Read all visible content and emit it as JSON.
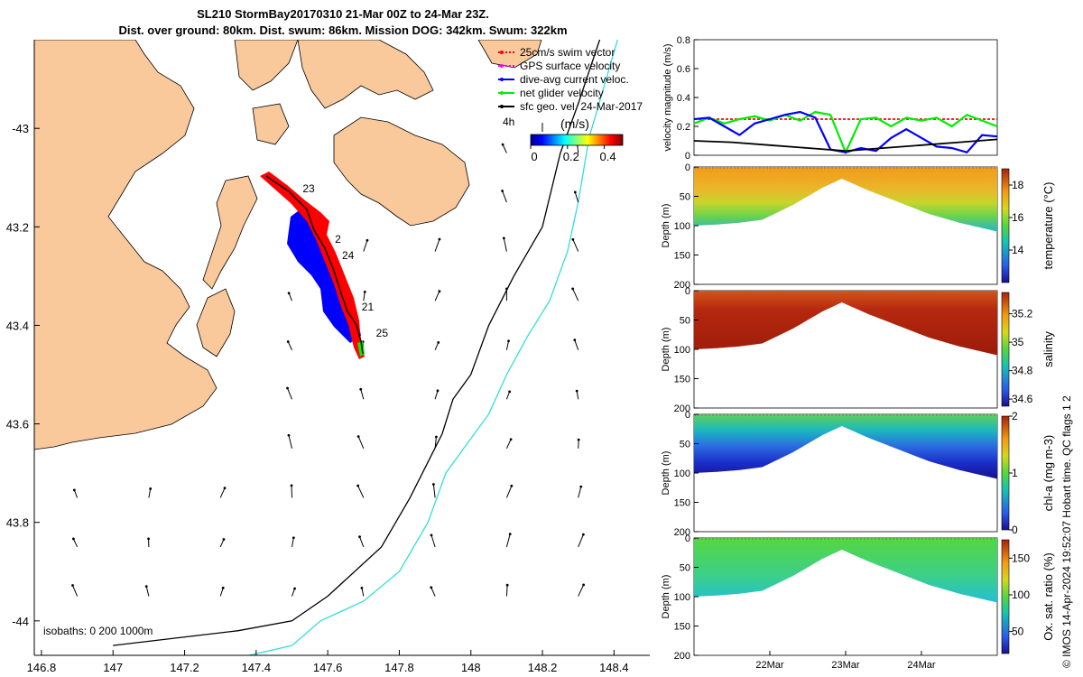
{
  "title": {
    "line1": "SL210 StormBay20170310 21-Mar 00Z to 24-Mar 23Z.",
    "line2": "Dist. over ground: 80km. Dist. swum: 86km. Mission DOG: 342km. Swum: 322km"
  },
  "colors": {
    "land": "#f9c89b",
    "track_red": "#ff0000",
    "track_blue": "#0000ff",
    "green": "#00ee00",
    "isobath200": "#000000",
    "isobath1000": "#33dddd"
  },
  "credit": "© IMOS 14-Apr-2024 19:52:07 Hobart time. QC flags 1  2",
  "chart_data": [
    {
      "type": "map",
      "xticks": [
        "146.8",
        "147",
        "147.2",
        "147.4",
        "147.6",
        "147.8",
        "148",
        "148.2",
        "148.4"
      ],
      "yticks": [
        "-43",
        "43.2",
        "43.4",
        "43.6",
        "43.8",
        "-44"
      ],
      "xlim": [
        146.78,
        148.5
      ],
      "ylim": [
        -44.07,
        -42.82
      ],
      "legend": [
        {
          "label": "25cm/s swim vector",
          "color": "#ff0000"
        },
        {
          "label": "GPS surface velocity",
          "color": "#ff00ff"
        },
        {
          "label": "dive-avg current veloc.",
          "color": "#0000ff"
        },
        {
          "label": "net glider velocity",
          "color": "#00ee00"
        },
        {
          "label": "sfc geo. vel. 24-Mar-2017",
          "color": "#000000"
        }
      ],
      "scale_label": "4h",
      "colorbar": {
        "label": "(m/s)",
        "ticks": [
          "0",
          "0.2",
          "0.4"
        ],
        "range": [
          0,
          0.5
        ]
      },
      "day_labels": [
        {
          "label": "23",
          "lon": 147.53,
          "lat": -43.13
        },
        {
          "label": "2",
          "lon": 147.62,
          "lat": -43.232
        },
        {
          "label": "24",
          "lon": 147.64,
          "lat": -43.265
        },
        {
          "label": "21",
          "lon": 147.695,
          "lat": -43.37
        },
        {
          "label": "25",
          "lon": 147.735,
          "lat": -43.423
        }
      ],
      "isobaths_label": "isobaths: 0   200  1000m",
      "isobath_200": [
        [
          147.0,
          -44.05
        ],
        [
          147.35,
          -44.02
        ],
        [
          147.5,
          -44.0
        ],
        [
          147.6,
          -43.95
        ],
        [
          147.75,
          -43.85
        ],
        [
          147.83,
          -43.75
        ],
        [
          147.92,
          -43.62
        ],
        [
          147.95,
          -43.55
        ],
        [
          148.0,
          -43.5
        ],
        [
          148.05,
          -43.4
        ],
        [
          148.12,
          -43.3
        ],
        [
          148.2,
          -43.2
        ],
        [
          148.25,
          -43.05
        ],
        [
          148.3,
          -42.95
        ],
        [
          148.36,
          -42.82
        ]
      ],
      "isobath_1000": [
        [
          147.38,
          -44.07
        ],
        [
          147.5,
          -44.05
        ],
        [
          147.58,
          -44.0
        ],
        [
          147.7,
          -43.96
        ],
        [
          147.8,
          -43.9
        ],
        [
          147.88,
          -43.8
        ],
        [
          147.93,
          -43.7
        ],
        [
          147.98,
          -43.65
        ],
        [
          148.05,
          -43.58
        ],
        [
          148.1,
          -43.5
        ],
        [
          148.16,
          -43.42
        ],
        [
          148.22,
          -43.35
        ],
        [
          148.27,
          -43.25
        ],
        [
          148.3,
          -43.15
        ],
        [
          148.33,
          -43.02
        ],
        [
          148.37,
          -42.92
        ],
        [
          148.41,
          -42.82
        ]
      ]
    },
    {
      "type": "line",
      "ylabel": "velocity magnitude (m/s)",
      "ylim": [
        0,
        0.8
      ],
      "yticks": [
        "0",
        "0.2",
        "0.4",
        "0.6",
        "0.8"
      ],
      "xlim": [
        21.0,
        25.0
      ],
      "series": [
        {
          "color": "#ff0000",
          "x": [
            21.0,
            25.0
          ],
          "values": [
            0.25,
            0.25
          ]
        },
        {
          "color": "#00ee00",
          "x": [
            21.0,
            21.2,
            21.4,
            21.6,
            21.8,
            22.0,
            22.2,
            22.4,
            22.6,
            22.8,
            23.0,
            23.2,
            23.4,
            23.6,
            23.8,
            24.0,
            24.2,
            24.4,
            24.6,
            24.8,
            25.0
          ],
          "values": [
            0.22,
            0.26,
            0.22,
            0.25,
            0.27,
            0.24,
            0.28,
            0.24,
            0.3,
            0.28,
            0.02,
            0.25,
            0.26,
            0.2,
            0.26,
            0.24,
            0.26,
            0.2,
            0.28,
            0.24,
            0.2
          ]
        },
        {
          "color": "#0000ff",
          "x": [
            21.0,
            21.2,
            21.4,
            21.6,
            21.8,
            22.0,
            22.2,
            22.4,
            22.6,
            22.7,
            22.8,
            23.0,
            23.2,
            23.4,
            23.6,
            23.8,
            24.0,
            24.2,
            24.4,
            24.6,
            24.8,
            25.0
          ],
          "values": [
            0.25,
            0.26,
            0.2,
            0.14,
            0.22,
            0.25,
            0.28,
            0.3,
            0.26,
            0.15,
            0.04,
            0.02,
            0.05,
            0.03,
            0.12,
            0.18,
            0.12,
            0.06,
            0.05,
            0.02,
            0.14,
            0.13
          ]
        },
        {
          "color": "#000000",
          "x": [
            21.0,
            21.5,
            22.0,
            22.5,
            23.0,
            23.5,
            24.0,
            24.5,
            25.0
          ],
          "values": [
            0.1,
            0.09,
            0.07,
            0.05,
            0.03,
            0.05,
            0.07,
            0.09,
            0.11
          ]
        }
      ]
    },
    {
      "type": "heatmap",
      "ylabel": "Depth (m)",
      "clabel": "temperature (°C)",
      "yticks": [
        "0",
        "50",
        "100",
        "150",
        "200"
      ],
      "cticks": [
        "14",
        "16",
        "18"
      ],
      "crange": [
        12,
        19
      ],
      "xlim": [
        21.0,
        25.0
      ],
      "ylim": [
        0,
        200
      ],
      "bottom_depth": {
        "x": [
          21.0,
          21.3,
          21.6,
          21.9,
          22.3,
          22.7,
          22.95,
          23.3,
          23.7,
          24.1,
          24.5,
          25.0
        ],
        "values": [
          100,
          98,
          95,
          90,
          65,
          35,
          20,
          40,
          60,
          80,
          95,
          110
        ]
      }
    },
    {
      "type": "heatmap",
      "ylabel": "Depth (m)",
      "clabel": "salinity",
      "yticks": [
        "0",
        "50",
        "100",
        "150",
        "200"
      ],
      "cticks": [
        "34.6",
        "34.8",
        "35",
        "35.2"
      ],
      "crange": [
        34.55,
        35.35
      ],
      "xlim": [
        21.0,
        25.0
      ],
      "ylim": [
        0,
        200
      ],
      "bottom_depth": {
        "x": [
          21.0,
          21.3,
          21.6,
          21.9,
          22.3,
          22.7,
          22.95,
          23.3,
          23.7,
          24.1,
          24.5,
          25.0
        ],
        "values": [
          100,
          98,
          95,
          90,
          65,
          35,
          20,
          40,
          60,
          80,
          95,
          110
        ]
      }
    },
    {
      "type": "heatmap",
      "ylabel": "Depth (m)",
      "clabel": "chl-a (mg m-3)",
      "yticks": [
        "0",
        "50",
        "100",
        "150",
        "200"
      ],
      "cticks": [
        "0",
        "1",
        "2"
      ],
      "crange": [
        0,
        2
      ],
      "xlim": [
        21.0,
        25.0
      ],
      "ylim": [
        0,
        200
      ],
      "bottom_depth": {
        "x": [
          21.0,
          21.3,
          21.6,
          21.9,
          22.3,
          22.7,
          22.95,
          23.3,
          23.7,
          24.1,
          24.5,
          25.0
        ],
        "values": [
          100,
          98,
          95,
          90,
          65,
          35,
          20,
          40,
          60,
          80,
          95,
          110
        ]
      }
    },
    {
      "type": "heatmap",
      "ylabel": "Depth (m)",
      "clabel": "Ox. sat. ratio (%)",
      "yticks": [
        "0",
        "50",
        "100",
        "150",
        "200"
      ],
      "cticks": [
        "50",
        "100",
        "150"
      ],
      "crange": [
        20,
        175
      ],
      "xlim": [
        21.0,
        25.0
      ],
      "ylim": [
        0,
        200
      ],
      "xticks": [
        {
          "label": "22Mar",
          "x": 22.0
        },
        {
          "label": "23Mar",
          "x": 23.0
        },
        {
          "label": "24Mar",
          "x": 24.0
        }
      ],
      "bottom_depth": {
        "x": [
          21.0,
          21.3,
          21.6,
          21.9,
          22.3,
          22.7,
          22.95,
          23.3,
          23.7,
          24.1,
          24.5,
          25.0
        ],
        "values": [
          100,
          98,
          95,
          90,
          65,
          35,
          20,
          40,
          60,
          80,
          95,
          110
        ]
      }
    }
  ]
}
